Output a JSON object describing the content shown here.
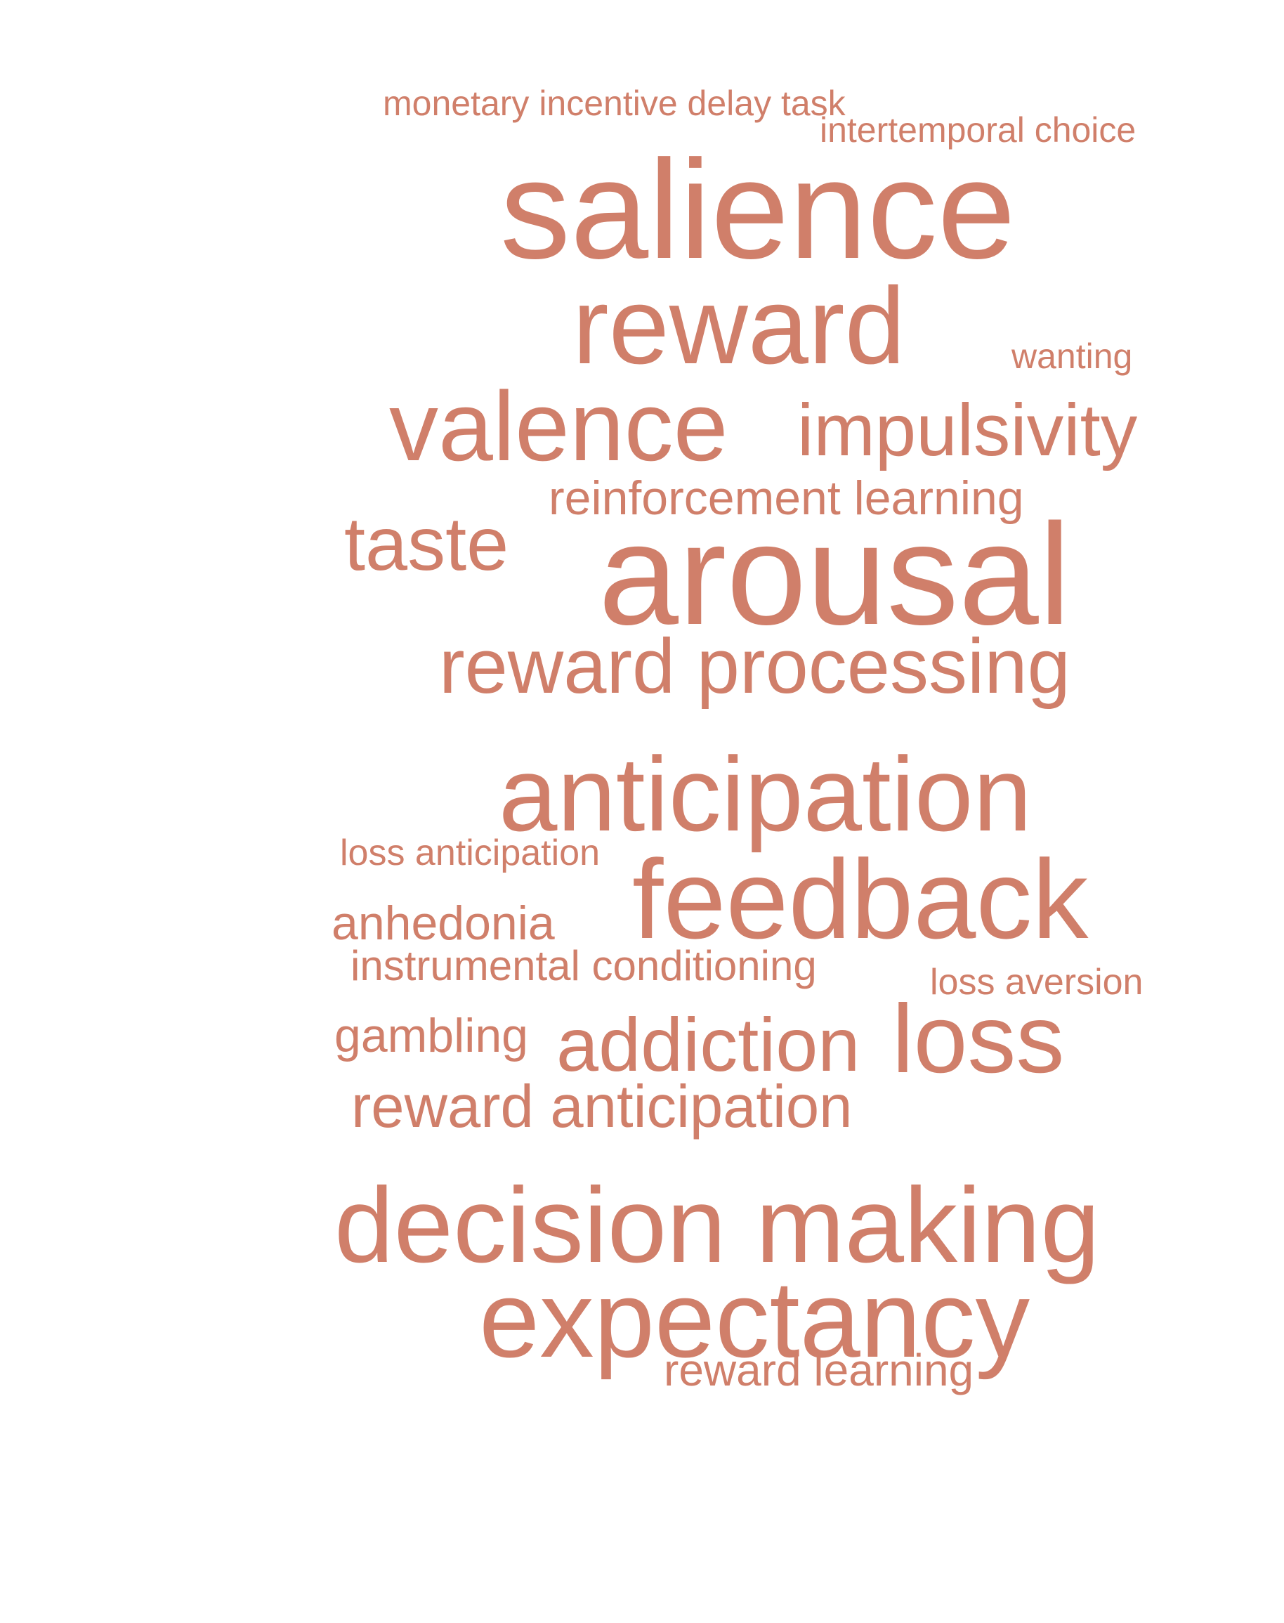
{
  "cloud": {
    "color": "#d07f6a",
    "words": {
      "monetary_incentive_delay_task": "monetary incentive delay task",
      "intertemporal_choice": "intertemporal choice",
      "salience": "salience",
      "reward": "reward",
      "wanting": "wanting",
      "valence": "valence",
      "impulsivity": "impulsivity",
      "reinforcement_learning": "reinforcement learning",
      "taste": "taste",
      "arousal": "arousal",
      "reward_processing": "reward processing",
      "anticipation": "anticipation",
      "loss_anticipation": "loss anticipation",
      "feedback": "feedback",
      "anhedonia": "anhedonia",
      "instrumental_conditioning": "instrumental conditioning",
      "loss_aversion": "loss aversion",
      "gambling": "gambling",
      "addiction": "addiction",
      "loss": "loss",
      "reward_anticipation": "reward anticipation",
      "decision_making": "decision making",
      "expectancy": "expectancy",
      "reward_learning": "reward learning"
    }
  }
}
